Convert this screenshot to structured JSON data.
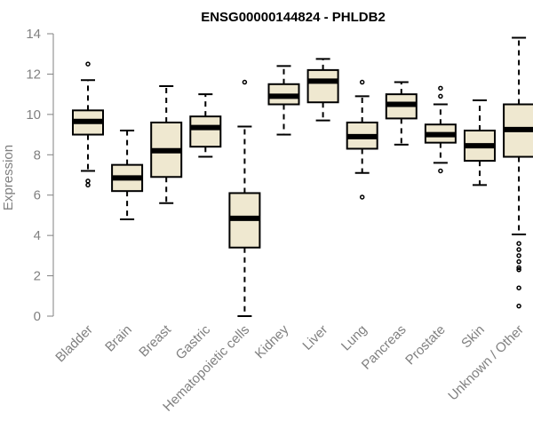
{
  "chart_data": {
    "type": "boxplot",
    "title": "ENSG00000144824 - PHLDB2",
    "xlabel": "",
    "ylabel": "Expression",
    "ylim": [
      0,
      14
    ],
    "yticks": [
      0,
      2,
      4,
      6,
      8,
      10,
      12,
      14
    ],
    "grid": false,
    "box_color": "#efe8d0",
    "categories": [
      "Bladder",
      "Brain",
      "Breast",
      "Gastric",
      "Hematopoietic cells",
      "Kidney",
      "Liver",
      "Lung",
      "Pancreas",
      "Prostate",
      "Skin",
      "Unknown / Other"
    ],
    "boxes": [
      {
        "whislo": 7.2,
        "q1": 9.0,
        "med": 9.65,
        "q3": 10.2,
        "whishi": 11.7,
        "fliers": [
          12.5,
          6.7,
          6.5
        ]
      },
      {
        "whislo": 4.8,
        "q1": 6.2,
        "med": 6.85,
        "q3": 7.5,
        "whishi": 9.2,
        "fliers": []
      },
      {
        "whislo": 5.6,
        "q1": 6.9,
        "med": 8.2,
        "q3": 9.6,
        "whishi": 11.4,
        "fliers": []
      },
      {
        "whislo": 7.9,
        "q1": 8.4,
        "med": 9.35,
        "q3": 9.9,
        "whishi": 11.0,
        "fliers": []
      },
      {
        "whislo": 0.0,
        "q1": 3.4,
        "med": 4.85,
        "q3": 6.1,
        "whishi": 9.4,
        "fliers": [
          11.6
        ]
      },
      {
        "whislo": 9.0,
        "q1": 10.5,
        "med": 10.9,
        "q3": 11.5,
        "whishi": 12.4,
        "fliers": []
      },
      {
        "whislo": 9.7,
        "q1": 10.6,
        "med": 11.65,
        "q3": 12.2,
        "whishi": 12.75,
        "fliers": []
      },
      {
        "whislo": 7.1,
        "q1": 8.3,
        "med": 8.9,
        "q3": 9.6,
        "whishi": 10.9,
        "fliers": [
          11.6,
          5.9
        ]
      },
      {
        "whislo": 8.5,
        "q1": 9.8,
        "med": 10.5,
        "q3": 11.0,
        "whishi": 11.6,
        "fliers": []
      },
      {
        "whislo": 7.6,
        "q1": 8.6,
        "med": 9.0,
        "q3": 9.5,
        "whishi": 10.5,
        "fliers": [
          11.3,
          10.9,
          7.2
        ]
      },
      {
        "whislo": 6.5,
        "q1": 7.7,
        "med": 8.45,
        "q3": 9.2,
        "whishi": 10.7,
        "fliers": []
      },
      {
        "whislo": 4.05,
        "q1": 7.9,
        "med": 9.25,
        "q3": 10.5,
        "whishi": 13.8,
        "fliers": [
          3.6,
          3.3,
          3.0,
          2.7,
          2.4,
          2.3,
          1.4,
          0.5
        ]
      }
    ]
  }
}
